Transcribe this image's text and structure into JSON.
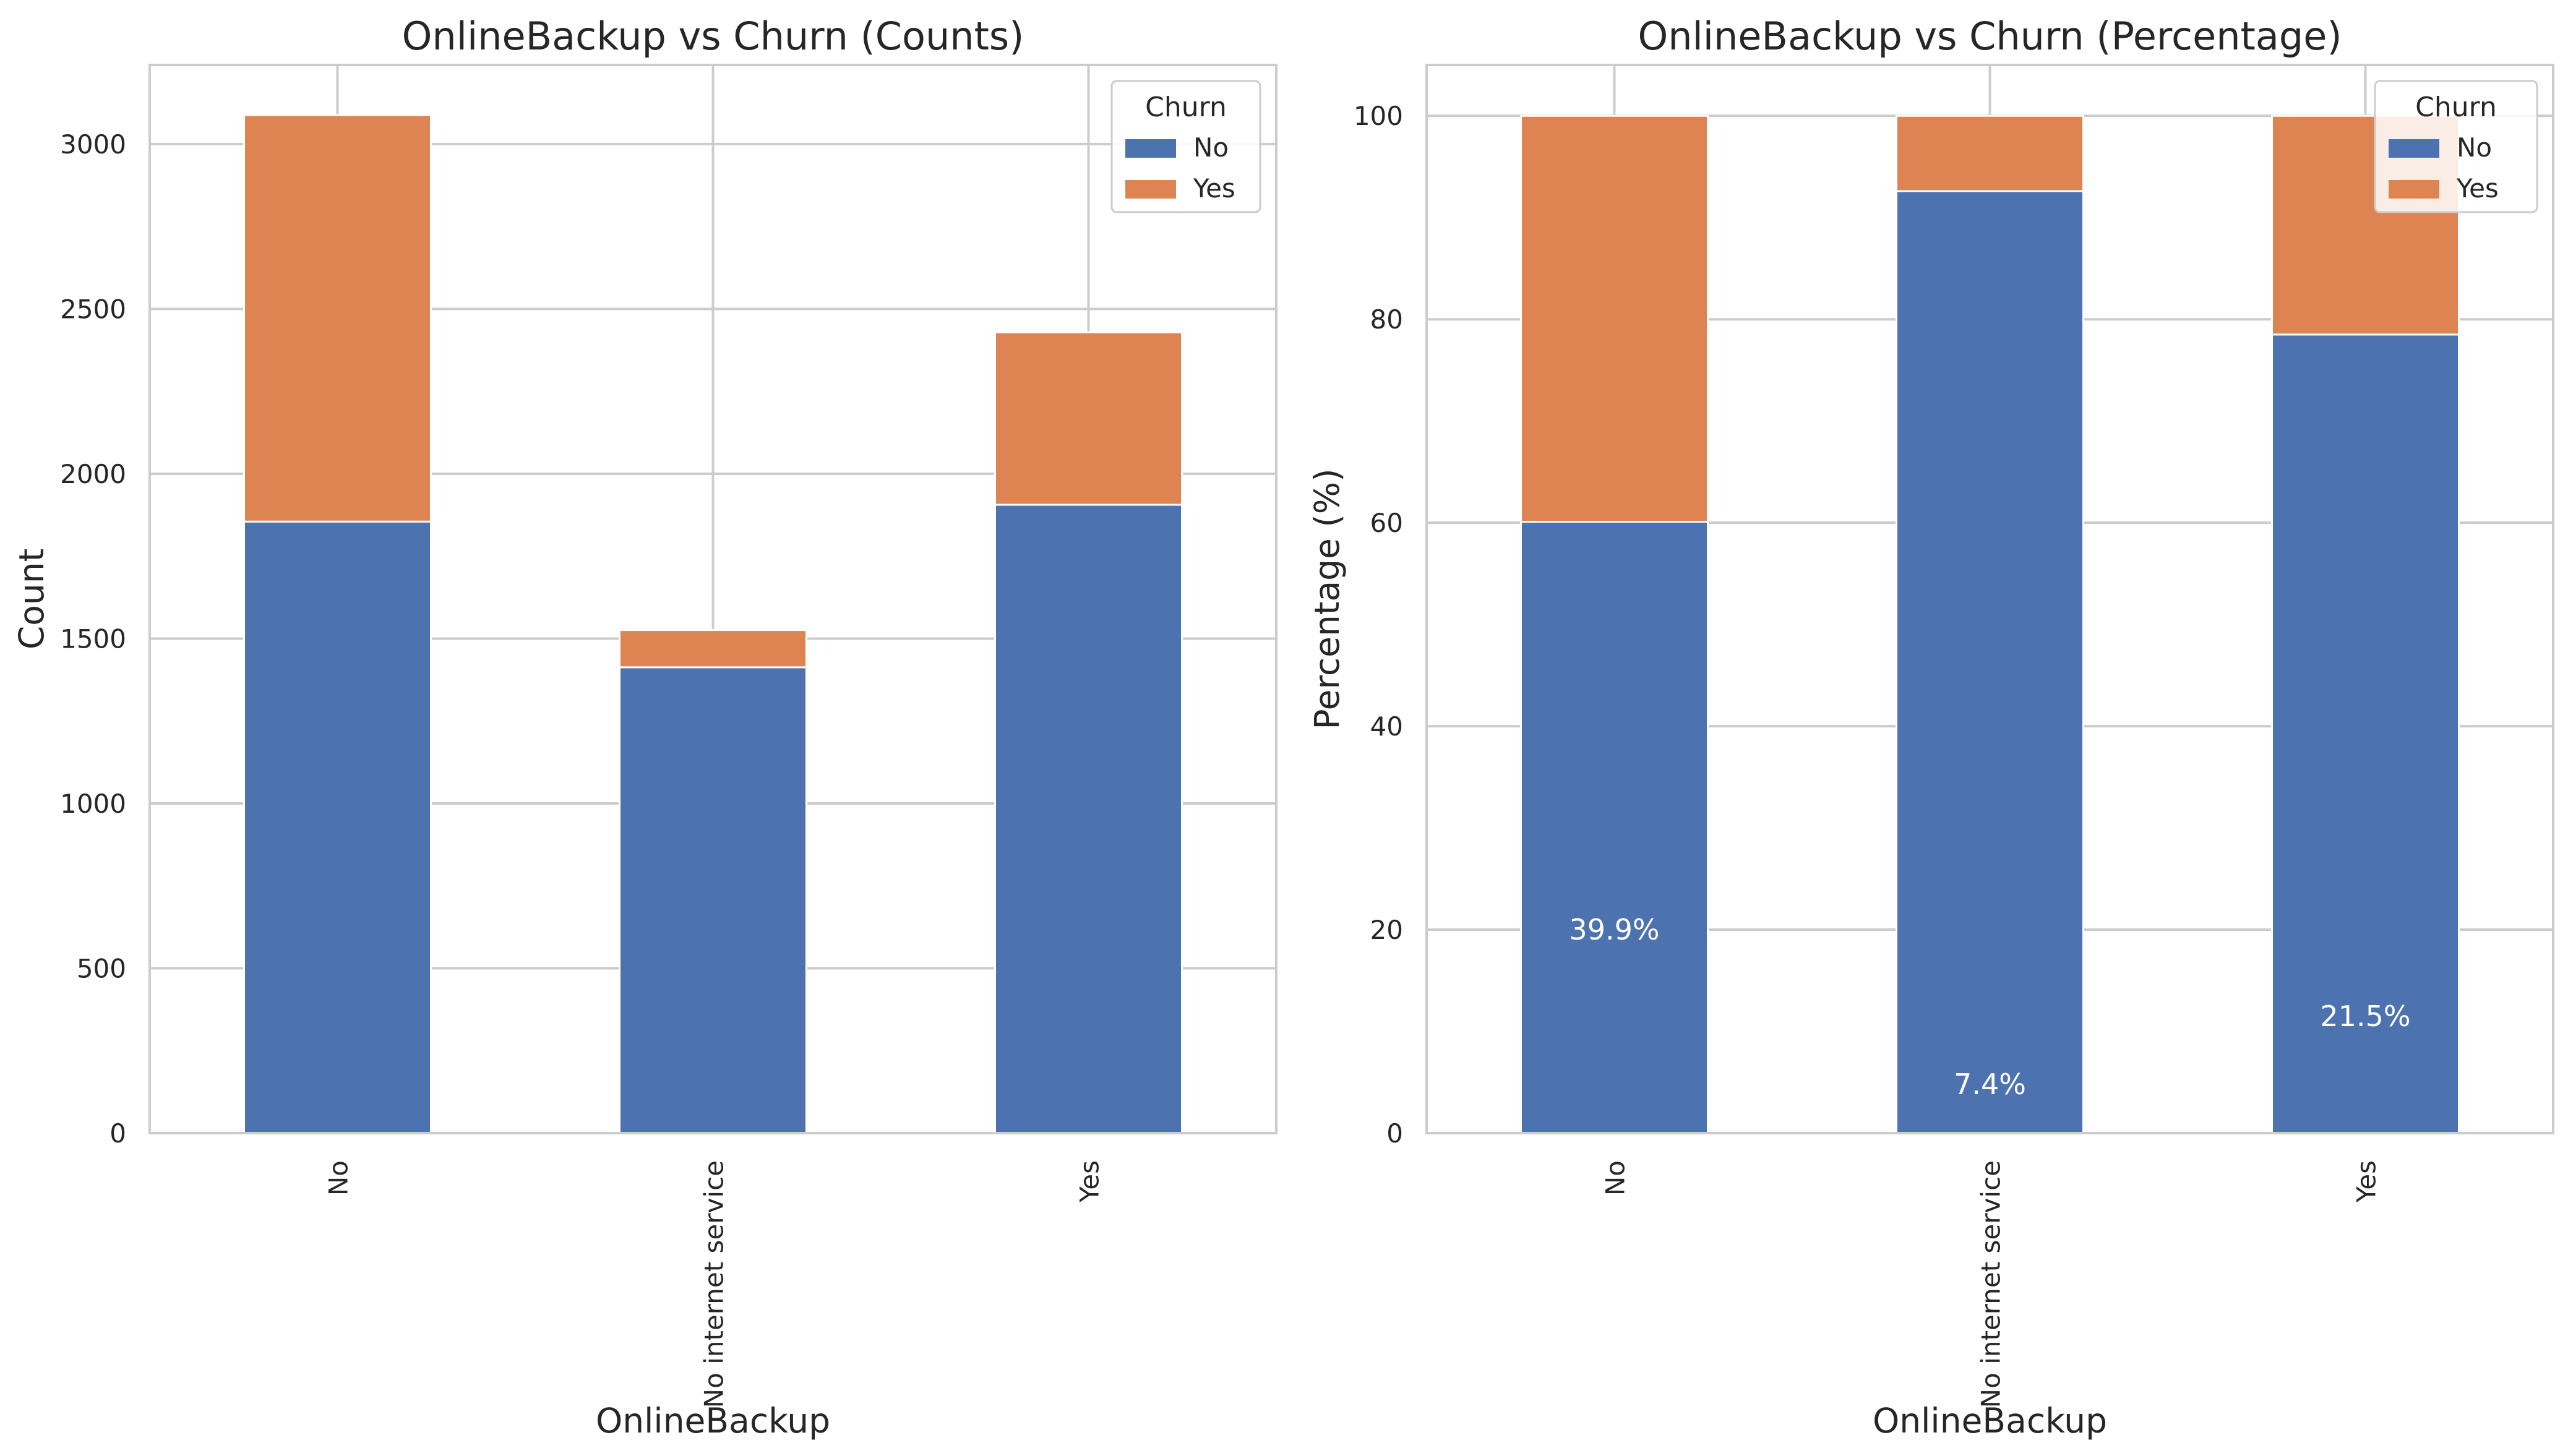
{
  "colors": {
    "no": "#4c72b0",
    "yes": "#dd8452",
    "grid": "#cccccc",
    "spine": "#cccccc",
    "text": "#262626",
    "bar_label": "#ffffff"
  },
  "chart_data": [
    {
      "type": "bar",
      "stacked": true,
      "title": "OnlineBackup vs Churn (Counts)",
      "xlabel": "OnlineBackup",
      "ylabel": "Count",
      "categories": [
        "No",
        "No internet service",
        "Yes"
      ],
      "series": [
        {
          "name": "No",
          "values": [
            1855,
            1413,
            1906
          ]
        },
        {
          "name": "Yes",
          "values": [
            1233,
            113,
            523
          ]
        }
      ],
      "ylim": [
        0,
        3240
      ],
      "yticks": [
        0,
        500,
        1000,
        1500,
        2000,
        2500,
        3000
      ],
      "grid": true,
      "legend": {
        "title": "Churn",
        "position": "top-right",
        "entries": [
          "No",
          "Yes"
        ]
      },
      "bar_labels": []
    },
    {
      "type": "bar",
      "stacked": true,
      "title": "OnlineBackup vs Churn (Percentage)",
      "xlabel": "OnlineBackup",
      "ylabel": "Percentage (%)",
      "categories": [
        "No",
        "No internet service",
        "Yes"
      ],
      "series": [
        {
          "name": "No",
          "values": [
            60.1,
            92.6,
            78.5
          ]
        },
        {
          "name": "Yes",
          "values": [
            39.9,
            7.4,
            21.5
          ]
        }
      ],
      "ylim": [
        0,
        105
      ],
      "yticks": [
        0,
        20,
        40,
        60,
        80,
        100
      ],
      "grid": true,
      "legend": {
        "title": "Churn",
        "position": "top-right",
        "entries": [
          "No",
          "Yes"
        ]
      },
      "bar_labels": [
        {
          "category": "No",
          "text": "39.9%",
          "y": 20
        },
        {
          "category": "No internet service",
          "text": "7.4%",
          "y": 4.8
        },
        {
          "category": "Yes",
          "text": "21.5%",
          "y": 11.5
        }
      ]
    }
  ]
}
